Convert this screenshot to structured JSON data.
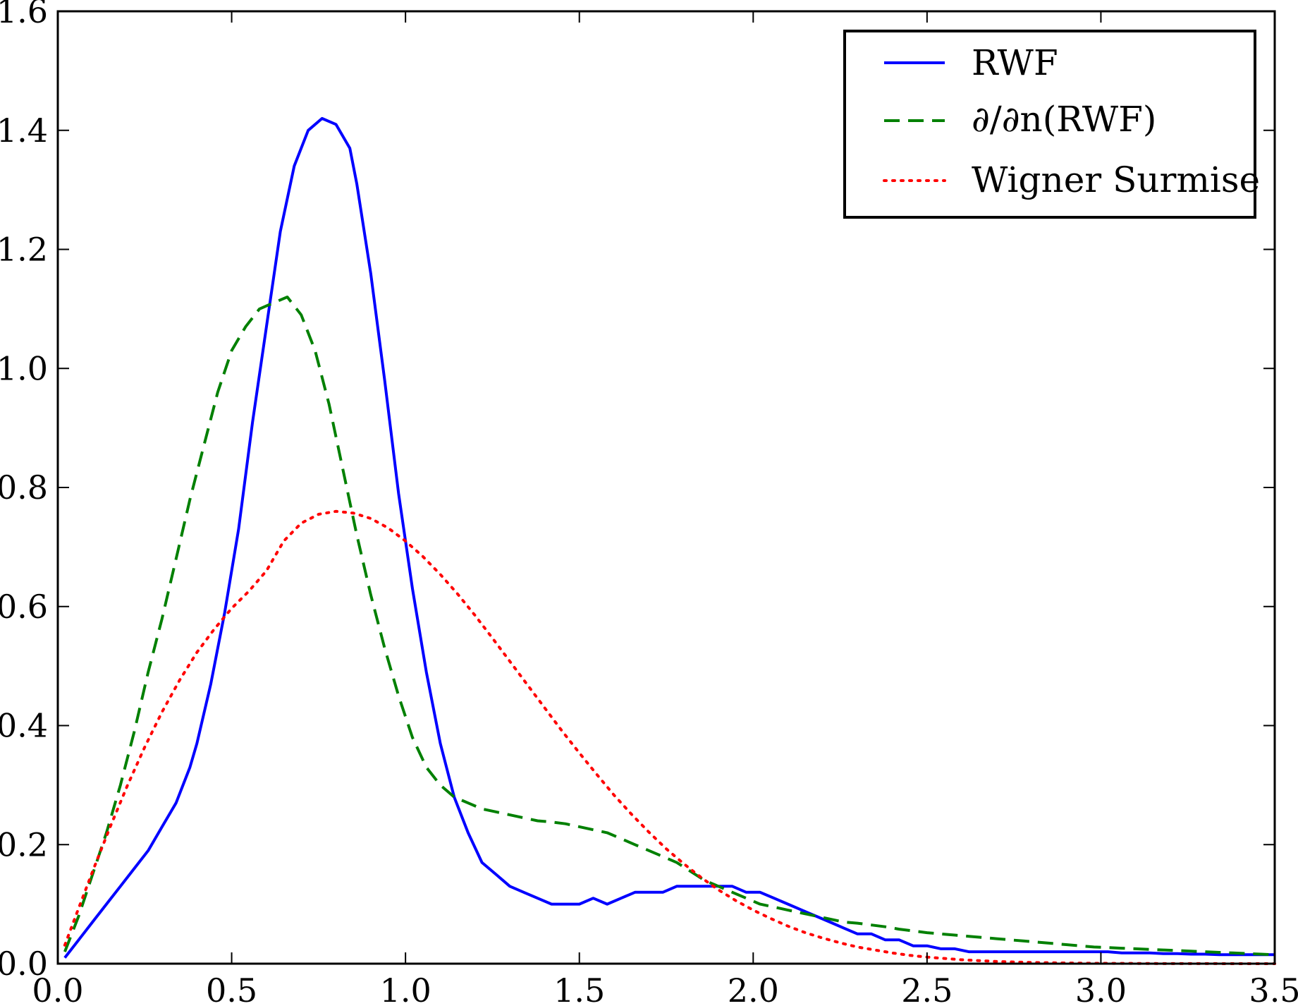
{
  "chart_data": {
    "type": "line",
    "title": "",
    "xlabel": "",
    "ylabel": "",
    "xlim": [
      0.0,
      3.5
    ],
    "ylim": [
      0.0,
      1.6
    ],
    "xticks": [
      "0.0",
      "0.5",
      "1.0",
      "1.5",
      "2.0",
      "2.5",
      "3.0",
      "3.5"
    ],
    "yticks": [
      "0.0",
      "0.2",
      "0.4",
      "0.6",
      "0.8",
      "1.0",
      "1.2",
      "1.4",
      "1.6"
    ],
    "grid": false,
    "legend_placement": "top-right",
    "series": [
      {
        "name": "RWF",
        "color": "#0000ff",
        "style": "solid",
        "x": [
          0.02,
          0.06,
          0.1,
          0.14,
          0.18,
          0.22,
          0.26,
          0.3,
          0.34,
          0.38,
          0.4,
          0.44,
          0.48,
          0.52,
          0.56,
          0.6,
          0.64,
          0.68,
          0.72,
          0.76,
          0.8,
          0.84,
          0.86,
          0.9,
          0.94,
          0.98,
          1.02,
          1.06,
          1.1,
          1.14,
          1.18,
          1.22,
          1.26,
          1.3,
          1.34,
          1.38,
          1.42,
          1.46,
          1.5,
          1.54,
          1.58,
          1.62,
          1.66,
          1.7,
          1.74,
          1.78,
          1.82,
          1.86,
          1.9,
          1.94,
          1.98,
          2.02,
          2.06,
          2.1,
          2.14,
          2.18,
          2.22,
          2.26,
          2.3,
          2.34,
          2.38,
          2.42,
          2.46,
          2.5,
          2.54,
          2.58,
          2.62,
          2.66,
          2.7,
          2.74,
          2.78,
          2.82,
          2.86,
          2.9,
          2.94,
          2.98,
          3.02,
          3.06,
          3.1,
          3.14,
          3.18,
          3.22,
          3.26,
          3.3,
          3.34,
          3.38,
          3.42,
          3.46,
          3.5
        ],
        "y": [
          0.01,
          0.04,
          0.07,
          0.1,
          0.13,
          0.16,
          0.19,
          0.23,
          0.27,
          0.33,
          0.37,
          0.47,
          0.59,
          0.73,
          0.91,
          1.07,
          1.23,
          1.34,
          1.4,
          1.42,
          1.41,
          1.37,
          1.31,
          1.16,
          0.98,
          0.79,
          0.63,
          0.49,
          0.37,
          0.28,
          0.22,
          0.17,
          0.15,
          0.13,
          0.12,
          0.11,
          0.1,
          0.1,
          0.1,
          0.11,
          0.1,
          0.11,
          0.12,
          0.12,
          0.12,
          0.13,
          0.13,
          0.13,
          0.13,
          0.13,
          0.12,
          0.12,
          0.11,
          0.1,
          0.09,
          0.08,
          0.07,
          0.06,
          0.05,
          0.05,
          0.04,
          0.04,
          0.03,
          0.03,
          0.025,
          0.025,
          0.02,
          0.02,
          0.02,
          0.02,
          0.02,
          0.02,
          0.02,
          0.02,
          0.02,
          0.02,
          0.02,
          0.018,
          0.018,
          0.018,
          0.017,
          0.017,
          0.016,
          0.016,
          0.015,
          0.015,
          0.015,
          0.015,
          0.015
        ]
      },
      {
        "name": "∂/∂n(RWF)",
        "color": "#008000",
        "style": "dashed",
        "x": [
          0.02,
          0.06,
          0.1,
          0.14,
          0.18,
          0.22,
          0.26,
          0.3,
          0.34,
          0.38,
          0.42,
          0.46,
          0.5,
          0.54,
          0.58,
          0.62,
          0.66,
          0.7,
          0.74,
          0.78,
          0.82,
          0.86,
          0.9,
          0.94,
          0.98,
          1.02,
          1.06,
          1.1,
          1.14,
          1.18,
          1.22,
          1.26,
          1.3,
          1.34,
          1.38,
          1.42,
          1.46,
          1.5,
          1.54,
          1.58,
          1.62,
          1.66,
          1.7,
          1.74,
          1.78,
          1.82,
          1.86,
          1.9,
          1.94,
          1.98,
          2.02,
          2.06,
          2.1,
          2.14,
          2.18,
          2.22,
          2.26,
          2.3,
          2.34,
          2.38,
          2.42,
          2.46,
          2.5,
          2.54,
          2.58,
          2.62,
          2.66,
          2.7,
          2.74,
          2.78,
          2.82,
          2.86,
          2.9,
          2.94,
          2.98,
          3.02,
          3.06,
          3.1,
          3.14,
          3.18,
          3.22,
          3.26,
          3.3,
          3.34,
          3.38,
          3.42,
          3.46,
          3.5
        ],
        "y": [
          0.02,
          0.08,
          0.15,
          0.22,
          0.3,
          0.39,
          0.49,
          0.58,
          0.68,
          0.78,
          0.87,
          0.96,
          1.03,
          1.07,
          1.1,
          1.11,
          1.12,
          1.09,
          1.03,
          0.94,
          0.83,
          0.72,
          0.62,
          0.53,
          0.45,
          0.38,
          0.33,
          0.3,
          0.28,
          0.27,
          0.26,
          0.255,
          0.25,
          0.245,
          0.24,
          0.238,
          0.235,
          0.23,
          0.225,
          0.22,
          0.21,
          0.2,
          0.19,
          0.18,
          0.17,
          0.155,
          0.14,
          0.13,
          0.12,
          0.11,
          0.1,
          0.095,
          0.09,
          0.085,
          0.08,
          0.075,
          0.07,
          0.068,
          0.065,
          0.062,
          0.058,
          0.055,
          0.052,
          0.05,
          0.048,
          0.046,
          0.044,
          0.042,
          0.04,
          0.038,
          0.036,
          0.034,
          0.032,
          0.03,
          0.028,
          0.027,
          0.026,
          0.025,
          0.024,
          0.023,
          0.022,
          0.021,
          0.02,
          0.019,
          0.018,
          0.017,
          0.016,
          0.015
        ]
      },
      {
        "name": "Wigner Surmise",
        "color": "#ff0000",
        "style": "dotted",
        "x": [
          0.02,
          0.05,
          0.1,
          0.15,
          0.2,
          0.25,
          0.3,
          0.35,
          0.4,
          0.45,
          0.5,
          0.55,
          0.6,
          0.65,
          0.7,
          0.75,
          0.8,
          0.85,
          0.9,
          0.95,
          1.0,
          1.05,
          1.1,
          1.15,
          1.2,
          1.25,
          1.3,
          1.35,
          1.4,
          1.45,
          1.5,
          1.55,
          1.6,
          1.65,
          1.7,
          1.75,
          1.8,
          1.85,
          1.9,
          1.95,
          2.0,
          2.05,
          2.1,
          2.15,
          2.2,
          2.25,
          2.3,
          2.35,
          2.4,
          2.45,
          2.5,
          2.6,
          2.7,
          2.8,
          2.9,
          3.0,
          3.1,
          3.2,
          3.3,
          3.4,
          3.5
        ],
        "y": [
          0.031,
          0.078,
          0.155,
          0.229,
          0.299,
          0.364,
          0.423,
          0.476,
          0.523,
          0.562,
          0.597,
          0.626,
          0.66,
          0.71,
          0.74,
          0.755,
          0.76,
          0.757,
          0.748,
          0.732,
          0.71,
          0.684,
          0.654,
          0.621,
          0.585,
          0.547,
          0.508,
          0.469,
          0.43,
          0.391,
          0.354,
          0.318,
          0.283,
          0.251,
          0.221,
          0.193,
          0.168,
          0.145,
          0.124,
          0.106,
          0.09,
          0.076,
          0.063,
          0.052,
          0.043,
          0.035,
          0.028,
          0.023,
          0.018,
          0.014,
          0.011,
          0.0065,
          0.0037,
          0.002,
          0.0011,
          0.0006,
          0.0003,
          0.0001,
          0.0001,
          0.0,
          0.0
        ]
      }
    ]
  }
}
